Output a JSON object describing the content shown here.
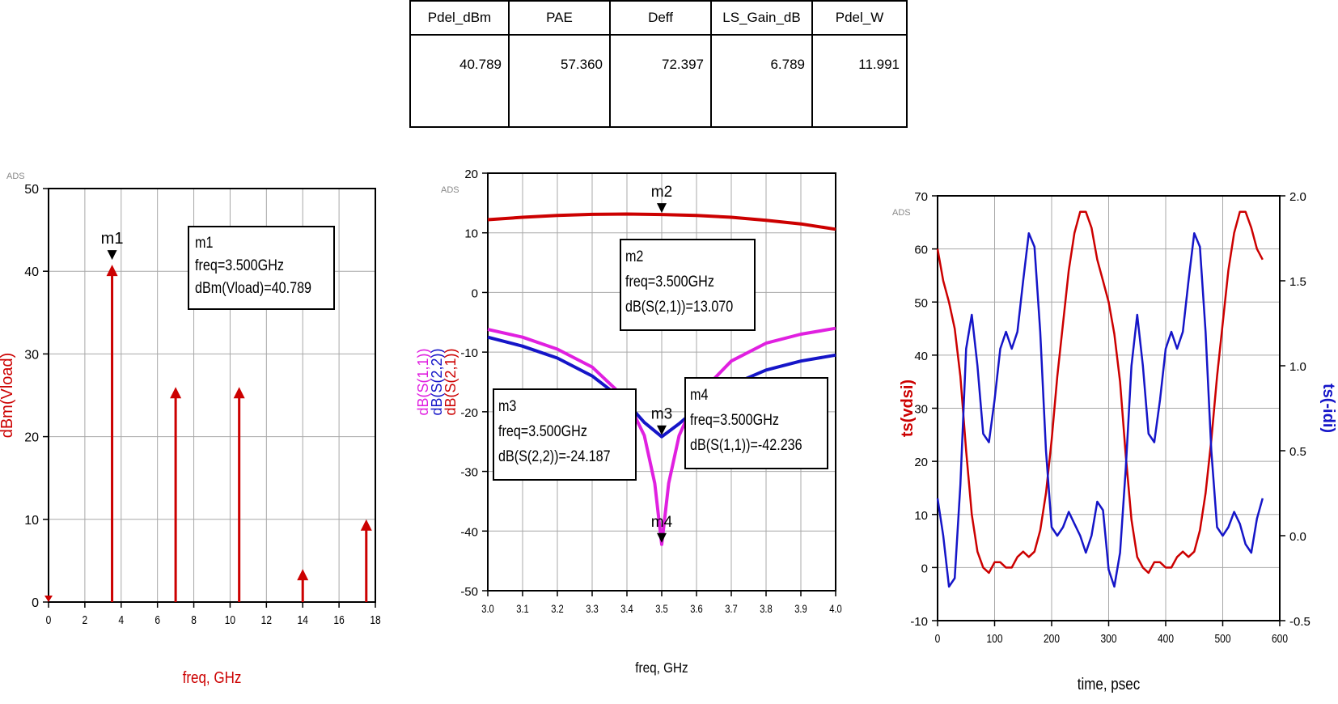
{
  "table": {
    "headers": [
      "Pdel_dBm",
      "PAE",
      "Deff",
      "LS_Gain_dB",
      "Pdel_W"
    ],
    "values": [
      "40.789",
      "57.360",
      "72.397",
      "6.789",
      "11.991"
    ]
  },
  "colors": {
    "red": "#cc0000",
    "blue": "#1515c8",
    "magenta": "#e020e0",
    "grid": "#a8a8a8"
  },
  "chart_data": [
    {
      "type": "stem",
      "title": "",
      "watermark": "ADS",
      "xlabel": "freq, GHz",
      "ylabel": "dBm(Vload)",
      "xlim": [
        0,
        18
      ],
      "ylim": [
        0,
        50
      ],
      "xticks": [
        "0",
        "2",
        "4",
        "6",
        "8",
        "10",
        "12",
        "14",
        "16",
        "18"
      ],
      "yticks": [
        "0",
        "10",
        "20",
        "30",
        "40",
        "50"
      ],
      "x": [
        0,
        3.5,
        7,
        10.5,
        14,
        17.5
      ],
      "values": [
        0,
        40.789,
        26,
        26,
        4,
        10
      ],
      "markers": [
        {
          "name": "m1",
          "x": 3.5,
          "y": 40.789,
          "box": [
            "m1",
            "freq=3.500GHz",
            "dBm(Vload)=40.789"
          ]
        }
      ]
    },
    {
      "type": "line",
      "title": "",
      "watermark": "ADS",
      "xlabel": "freq, GHz",
      "ylabels": [
        "dB(S(1,1))",
        "dB(S(2,2))",
        "dB(S(2,1))"
      ],
      "xlim": [
        3.0,
        4.0
      ],
      "ylim": [
        -50,
        20
      ],
      "xticks": [
        "3.0",
        "3.1",
        "3.2",
        "3.3",
        "3.4",
        "3.5",
        "3.6",
        "3.7",
        "3.8",
        "3.9",
        "4.0"
      ],
      "yticks": [
        "-50",
        "-40",
        "-30",
        "-20",
        "-10",
        "0",
        "10",
        "20"
      ],
      "series": [
        {
          "name": "dB(S(2,1))",
          "x": [
            3.0,
            3.1,
            3.2,
            3.3,
            3.4,
            3.5,
            3.6,
            3.7,
            3.8,
            3.9,
            4.0
          ],
          "values": [
            12.2,
            12.6,
            12.9,
            13.1,
            13.15,
            13.07,
            12.9,
            12.6,
            12.1,
            11.5,
            10.6
          ]
        },
        {
          "name": "dB(S(2,2))",
          "x": [
            3.0,
            3.1,
            3.2,
            3.3,
            3.4,
            3.45,
            3.5,
            3.55,
            3.6,
            3.7,
            3.8,
            3.9,
            4.0
          ],
          "values": [
            -7.5,
            -9.0,
            -11.0,
            -14.0,
            -18.5,
            -21.8,
            -24.187,
            -22.0,
            -19.5,
            -15.5,
            -13.0,
            -11.5,
            -10.5
          ]
        },
        {
          "name": "dB(S(1,1))",
          "x": [
            3.0,
            3.1,
            3.2,
            3.3,
            3.4,
            3.45,
            3.48,
            3.5,
            3.52,
            3.55,
            3.6,
            3.7,
            3.8,
            3.9,
            4.0
          ],
          "values": [
            -6.2,
            -7.5,
            -9.5,
            -12.5,
            -18.0,
            -24.0,
            -32.0,
            -42.236,
            -32.0,
            -24.0,
            -17.5,
            -11.5,
            -8.5,
            -7.0,
            -6.0
          ]
        }
      ],
      "markers": [
        {
          "name": "m2",
          "x": 3.5,
          "y": 13.07,
          "box": [
            "m2",
            "freq=3.500GHz",
            "dB(S(2,1))=13.070"
          ]
        },
        {
          "name": "m3",
          "x": 3.5,
          "y": -24.187,
          "box": [
            "m3",
            "freq=3.500GHz",
            "dB(S(2,2))=-24.187"
          ]
        },
        {
          "name": "m4",
          "x": 3.5,
          "y": -42.236,
          "box": [
            "m4",
            "freq=3.500GHz",
            "dB(S(1,1))=-42.236"
          ]
        }
      ]
    },
    {
      "type": "line",
      "title": "",
      "watermark": "ADS",
      "xlabel": "time, psec",
      "ylabel_left": "ts(vdsi)",
      "ylabel_right": "ts(-idi)",
      "xlim": [
        0,
        600
      ],
      "ylim_left": [
        -10,
        70
      ],
      "ylim_right": [
        -0.5,
        2.0
      ],
      "xticks": [
        "0",
        "100",
        "200",
        "300",
        "400",
        "500",
        "600"
      ],
      "yticks_left": [
        "-10",
        "0",
        "10",
        "20",
        "30",
        "40",
        "50",
        "60",
        "70"
      ],
      "yticks_right": [
        "-0.5",
        "0.0",
        "0.5",
        "1.0",
        "1.5",
        "2.0"
      ],
      "series": [
        {
          "name": "ts(vdsi)",
          "axis": "left",
          "x": [
            0,
            10,
            20,
            30,
            40,
            50,
            60,
            70,
            80,
            90,
            100,
            110,
            120,
            130,
            140,
            150,
            160,
            170,
            180,
            190,
            200,
            210,
            220,
            230,
            240,
            250,
            260,
            270,
            280,
            290,
            300,
            310,
            320,
            330,
            340,
            350,
            360,
            370,
            380,
            390,
            400,
            410,
            420,
            430,
            440,
            450,
            460,
            470,
            480,
            490,
            500,
            510,
            520,
            530,
            540,
            550,
            560,
            570
          ],
          "values": [
            60,
            54,
            50,
            45,
            36,
            22,
            10,
            3,
            0,
            -1,
            1,
            1,
            0,
            0,
            2,
            3,
            2,
            3,
            7,
            14,
            24,
            36,
            46,
            56,
            63,
            67,
            67,
            64,
            58,
            54,
            50,
            44,
            35,
            21,
            9,
            2,
            0,
            -1,
            1,
            1,
            0,
            0,
            2,
            3,
            2,
            3,
            7,
            14,
            24,
            36,
            46,
            56,
            63,
            67,
            67,
            64,
            60,
            58
          ]
        },
        {
          "name": "ts(-idi)",
          "axis": "right",
          "x": [
            0,
            10,
            20,
            30,
            40,
            50,
            60,
            70,
            80,
            90,
            100,
            110,
            120,
            130,
            140,
            150,
            160,
            170,
            180,
            190,
            200,
            210,
            220,
            230,
            240,
            250,
            260,
            270,
            280,
            290,
            300,
            310,
            320,
            330,
            340,
            350,
            360,
            370,
            380,
            390,
            400,
            410,
            420,
            430,
            440,
            450,
            460,
            470,
            480,
            490,
            500,
            510,
            520,
            530,
            540,
            550,
            560,
            570
          ],
          "values": [
            0.22,
            0.0,
            -0.3,
            -0.25,
            0.3,
            1.1,
            1.3,
            1.0,
            0.6,
            0.55,
            0.8,
            1.1,
            1.2,
            1.1,
            1.2,
            1.5,
            1.78,
            1.7,
            1.2,
            0.5,
            0.05,
            0.0,
            0.05,
            0.14,
            0.07,
            0.0,
            -0.1,
            0.0,
            0.2,
            0.15,
            -0.2,
            -0.3,
            -0.1,
            0.4,
            1.0,
            1.3,
            1.0,
            0.6,
            0.55,
            0.8,
            1.1,
            1.2,
            1.1,
            1.2,
            1.5,
            1.78,
            1.7,
            1.2,
            0.5,
            0.05,
            0.0,
            0.05,
            0.14,
            0.07,
            -0.05,
            -0.1,
            0.1,
            0.22
          ]
        }
      ]
    }
  ]
}
